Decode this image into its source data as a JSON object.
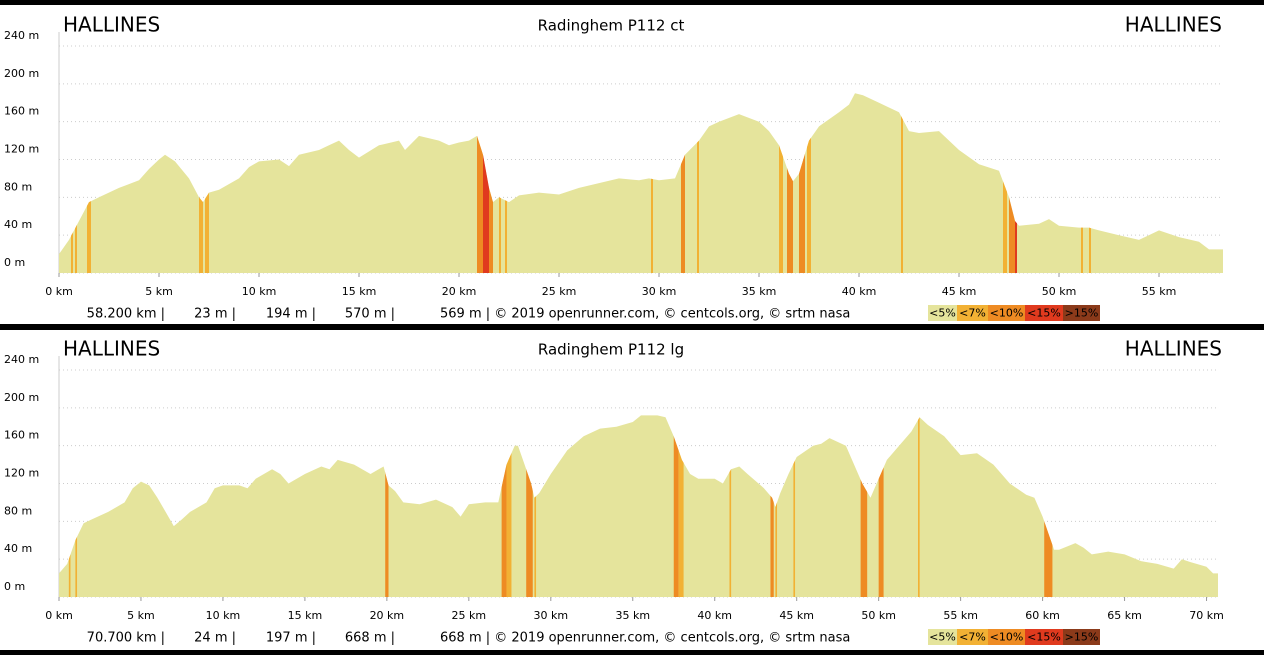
{
  "chart_data": [
    {
      "type": "area",
      "title": "Radinghem P112 ct",
      "start_label": "HALLINES",
      "end_label": "HALLINES",
      "color": "#e5e49c",
      "x": [
        0,
        0.5,
        1,
        1.5,
        2,
        3,
        4,
        4.5,
        5,
        5.3,
        5.8,
        6.5,
        7,
        7.2,
        7.5,
        8,
        9,
        9.5,
        10,
        11,
        11.5,
        12,
        13,
        13.5,
        14,
        14.5,
        15,
        16,
        17,
        17.3,
        18,
        19,
        19.5,
        20,
        20.5,
        20.9,
        21.2,
        21.5,
        21.7,
        22,
        22.5,
        23,
        24,
        25,
        26,
        27,
        28,
        29,
        29.5,
        30,
        30.8,
        31.3,
        32,
        32.5,
        33,
        34,
        35,
        35.5,
        36,
        36.5,
        36.7,
        37,
        37.5,
        38,
        39,
        39.5,
        39.8,
        40.2,
        41,
        42,
        42.5,
        43,
        44,
        45,
        46,
        47,
        47.5,
        47.8,
        48,
        49,
        49.5,
        50,
        51,
        51.5,
        52,
        53,
        54,
        55,
        56,
        57,
        57.5,
        58.2
      ],
      "values": [
        20,
        35,
        55,
        75,
        80,
        90,
        98,
        110,
        120,
        125,
        118,
        100,
        80,
        75,
        85,
        88,
        100,
        112,
        118,
        120,
        113,
        125,
        130,
        135,
        140,
        130,
        122,
        135,
        140,
        130,
        145,
        140,
        135,
        138,
        140,
        145,
        125,
        90,
        75,
        80,
        75,
        82,
        85,
        83,
        90,
        95,
        100,
        98,
        100,
        98,
        100,
        125,
        140,
        155,
        160,
        168,
        160,
        150,
        135,
        105,
        97,
        105,
        140,
        155,
        170,
        178,
        190,
        188,
        180,
        170,
        150,
        148,
        150,
        130,
        115,
        108,
        80,
        55,
        50,
        52,
        57,
        50,
        48,
        48,
        45,
        40,
        35,
        45,
        38,
        33,
        25,
        25
      ],
      "bands": [
        {
          "from": 0.6,
          "to": 0.7,
          "color": "#f2b134"
        },
        {
          "from": 0.8,
          "to": 0.9,
          "color": "#f2b134"
        },
        {
          "from": 1.4,
          "to": 1.6,
          "color": "#f2b134"
        },
        {
          "from": 7.0,
          "to": 7.2,
          "color": "#f2b134"
        },
        {
          "from": 7.3,
          "to": 7.5,
          "color": "#f2b134"
        },
        {
          "from": 20.9,
          "to": 21.2,
          "color": "#ee8b23"
        },
        {
          "from": 21.2,
          "to": 21.5,
          "color": "#e03a1e"
        },
        {
          "from": 21.5,
          "to": 21.7,
          "color": "#ee8b23"
        },
        {
          "from": 22.0,
          "to": 22.1,
          "color": "#f2b134"
        },
        {
          "from": 22.3,
          "to": 22.4,
          "color": "#f2b134"
        },
        {
          "from": 29.6,
          "to": 29.7,
          "color": "#f2b134"
        },
        {
          "from": 31.1,
          "to": 31.3,
          "color": "#ee8b23"
        },
        {
          "from": 31.9,
          "to": 32.0,
          "color": "#f2b134"
        },
        {
          "from": 36.0,
          "to": 36.2,
          "color": "#f2b134"
        },
        {
          "from": 36.4,
          "to": 36.7,
          "color": "#ee8b23"
        },
        {
          "from": 37.0,
          "to": 37.3,
          "color": "#ee8b23"
        },
        {
          "from": 37.4,
          "to": 37.6,
          "color": "#f2b134"
        },
        {
          "from": 42.1,
          "to": 42.2,
          "color": "#f2b134"
        },
        {
          "from": 47.2,
          "to": 47.4,
          "color": "#f2b134"
        },
        {
          "from": 47.5,
          "to": 47.8,
          "color": "#ee8b23"
        },
        {
          "from": 47.8,
          "to": 47.9,
          "color": "#e03a1e"
        },
        {
          "from": 51.1,
          "to": 51.2,
          "color": "#f2b134"
        },
        {
          "from": 51.5,
          "to": 51.6,
          "color": "#f2b134"
        }
      ],
      "xlim": [
        0,
        58.2
      ],
      "ylim": [
        0,
        240
      ],
      "xticks": [
        {
          "value": 0,
          "label": "0 km"
        },
        {
          "value": 5,
          "label": "5 km"
        },
        {
          "value": 10,
          "label": "10 km"
        },
        {
          "value": 15,
          "label": "15 km"
        },
        {
          "value": 20,
          "label": "20 km"
        },
        {
          "value": 25,
          "label": "25 km"
        },
        {
          "value": 30,
          "label": "30 km"
        },
        {
          "value": 35,
          "label": "35 km"
        },
        {
          "value": 40,
          "label": "40 km"
        },
        {
          "value": 45,
          "label": "45 km"
        },
        {
          "value": 50,
          "label": "50 km"
        },
        {
          "value": 55,
          "label": "55 km"
        }
      ],
      "yticks": [
        {
          "value": 0,
          "label": "0 m"
        },
        {
          "value": 40,
          "label": "40 m"
        },
        {
          "value": 80,
          "label": "80 m"
        },
        {
          "value": 120,
          "label": "120 m"
        },
        {
          "value": 160,
          "label": "160 m"
        },
        {
          "value": 200,
          "label": "200 m"
        },
        {
          "value": 240,
          "label": "240 m"
        }
      ],
      "grid": true,
      "stats": [
        "58.200 km |",
        "23 m |",
        "194 m |",
        "570 m |",
        "569 m | © 2019 openrunner.com, © centcols.org, © srtm nasa"
      ],
      "legend": [
        {
          "name": "<5%",
          "color": "#e5e49c"
        },
        {
          "name": "<7%",
          "color": "#f2b134"
        },
        {
          "name": "<10%",
          "color": "#ee8b23"
        },
        {
          "name": "<15%",
          "color": "#e03a1e"
        },
        {
          "name": ">15%",
          "color": "#8b3a1a"
        }
      ]
    },
    {
      "type": "area",
      "title": "Radinghem P112 lg",
      "start_label": "HALLINES",
      "end_label": "HALLINES",
      "color": "#e5e49c",
      "x": [
        0,
        0.5,
        1,
        1.5,
        2,
        3,
        4,
        4.5,
        5,
        5.5,
        6,
        6.5,
        7,
        7.5,
        8,
        9,
        9.5,
        10,
        11,
        11.5,
        12,
        13,
        13.5,
        14,
        15,
        16,
        16.5,
        17,
        18,
        19,
        19.5,
        19.8,
        20.1,
        20.5,
        21,
        22,
        23,
        24,
        24.5,
        25,
        26,
        26.8,
        27.3,
        27.8,
        28,
        28.4,
        28.8,
        29,
        29.3,
        30,
        31,
        32,
        33,
        34,
        35,
        35.5,
        36.5,
        37,
        37.5,
        38,
        38.5,
        39,
        40,
        40.5,
        41,
        41.5,
        42,
        43,
        43.5,
        43.7,
        44,
        44.5,
        45,
        46,
        46.5,
        47,
        48,
        48.5,
        49,
        49.5,
        50,
        50.5,
        51,
        52,
        52.5,
        53,
        54,
        55,
        56,
        57,
        58,
        59,
        59.5,
        60,
        60.5,
        60.7,
        61,
        62,
        62.5,
        63,
        64,
        65,
        66,
        67,
        68,
        68.5,
        69,
        70,
        70.4,
        70.7
      ],
      "values": [
        25,
        35,
        60,
        78,
        82,
        90,
        100,
        115,
        122,
        118,
        105,
        90,
        75,
        82,
        90,
        100,
        115,
        118,
        118,
        115,
        125,
        135,
        130,
        120,
        130,
        138,
        135,
        145,
        140,
        130,
        135,
        138,
        118,
        112,
        100,
        98,
        103,
        95,
        85,
        98,
        100,
        100,
        140,
        160,
        160,
        140,
        120,
        105,
        110,
        130,
        155,
        170,
        178,
        180,
        185,
        192,
        192,
        190,
        170,
        145,
        130,
        125,
        125,
        120,
        135,
        138,
        130,
        115,
        105,
        95,
        110,
        130,
        148,
        160,
        162,
        168,
        160,
        140,
        120,
        105,
        125,
        145,
        155,
        175,
        190,
        182,
        170,
        150,
        152,
        140,
        120,
        108,
        105,
        85,
        60,
        50,
        50,
        57,
        52,
        45,
        48,
        45,
        38,
        35,
        30,
        40,
        37,
        32,
        25,
        25
      ],
      "bands": [
        {
          "from": 0.6,
          "to": 0.7,
          "color": "#f2b134"
        },
        {
          "from": 1.0,
          "to": 1.1,
          "color": "#f2b134"
        },
        {
          "from": 19.9,
          "to": 20.1,
          "color": "#ee8b23"
        },
        {
          "from": 27.0,
          "to": 27.3,
          "color": "#ee8b23"
        },
        {
          "from": 27.3,
          "to": 27.6,
          "color": "#f2b134"
        },
        {
          "from": 28.5,
          "to": 28.9,
          "color": "#ee8b23"
        },
        {
          "from": 29.0,
          "to": 29.1,
          "color": "#f2b134"
        },
        {
          "from": 37.5,
          "to": 37.8,
          "color": "#ee8b23"
        },
        {
          "from": 37.8,
          "to": 38.1,
          "color": "#f2b134"
        },
        {
          "from": 40.9,
          "to": 41.0,
          "color": "#f2b134"
        },
        {
          "from": 43.4,
          "to": 43.6,
          "color": "#ee8b23"
        },
        {
          "from": 43.7,
          "to": 43.8,
          "color": "#f2b134"
        },
        {
          "from": 44.8,
          "to": 44.9,
          "color": "#f2b134"
        },
        {
          "from": 48.9,
          "to": 49.3,
          "color": "#ee8b23"
        },
        {
          "from": 50.0,
          "to": 50.3,
          "color": "#ee8b23"
        },
        {
          "from": 52.4,
          "to": 52.5,
          "color": "#f2b134"
        },
        {
          "from": 60.1,
          "to": 60.6,
          "color": "#ee8b23"
        }
      ],
      "xlim": [
        0,
        70.7
      ],
      "ylim": [
        0,
        240
      ],
      "xticks": [
        {
          "value": 0,
          "label": "0 km"
        },
        {
          "value": 5,
          "label": "5 km"
        },
        {
          "value": 10,
          "label": "10 km"
        },
        {
          "value": 15,
          "label": "15 km"
        },
        {
          "value": 20,
          "label": "20 km"
        },
        {
          "value": 25,
          "label": "25 km"
        },
        {
          "value": 30,
          "label": "30 km"
        },
        {
          "value": 35,
          "label": "35 km"
        },
        {
          "value": 40,
          "label": "40 km"
        },
        {
          "value": 45,
          "label": "45 km"
        },
        {
          "value": 50,
          "label": "50 km"
        },
        {
          "value": 55,
          "label": "55 km"
        },
        {
          "value": 60,
          "label": "60 km"
        },
        {
          "value": 65,
          "label": "65 km"
        },
        {
          "value": 70,
          "label": "70 km"
        }
      ],
      "yticks": [
        {
          "value": 0,
          "label": "0 m"
        },
        {
          "value": 40,
          "label": "40 m"
        },
        {
          "value": 80,
          "label": "80 m"
        },
        {
          "value": 120,
          "label": "120 m"
        },
        {
          "value": 160,
          "label": "160 m"
        },
        {
          "value": 200,
          "label": "200 m"
        },
        {
          "value": 240,
          "label": "240 m"
        }
      ],
      "grid": true,
      "stats": [
        "70.700 km |",
        "24 m |",
        "197 m |",
        "668 m |",
        "668 m | © 2019 openrunner.com, © centcols.org, © srtm nasa"
      ],
      "legend": [
        {
          "name": "<5%",
          "color": "#e5e49c"
        },
        {
          "name": "<7%",
          "color": "#f2b134"
        },
        {
          "name": "<10%",
          "color": "#ee8b23"
        },
        {
          "name": "<15%",
          "color": "#e03a1e"
        },
        {
          "name": ">15%",
          "color": "#8b3a1a"
        }
      ]
    }
  ]
}
